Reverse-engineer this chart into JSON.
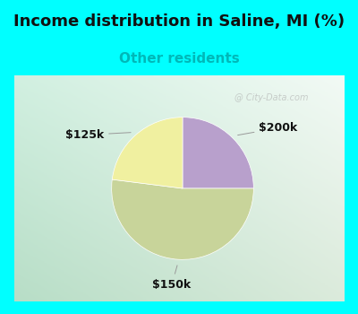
{
  "title": "Income distribution in Saline, MI (%)",
  "subtitle": "Other residents",
  "subtitle_color": "#00b8b8",
  "title_color": "#111111",
  "cyan_color": "#00ffff",
  "slices": [
    {
      "label": "$200k",
      "value": 25,
      "color": "#b8a0cc"
    },
    {
      "label": "$150k",
      "value": 52,
      "color": "#c8d49a"
    },
    {
      "label": "$125k",
      "value": 23,
      "color": "#f0f0a0"
    }
  ],
  "watermark": "City-Data.com",
  "startangle": 90,
  "label_fontsize": 9,
  "title_fontsize": 13,
  "subtitle_fontsize": 11,
  "border_thickness": 0.04
}
